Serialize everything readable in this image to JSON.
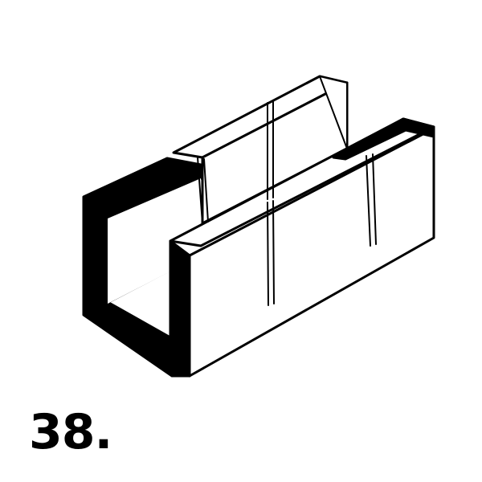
{
  "figure": {
    "number_label": "38."
  },
  "colors": {
    "ink": "#000000",
    "paper": "#ffffff"
  }
}
